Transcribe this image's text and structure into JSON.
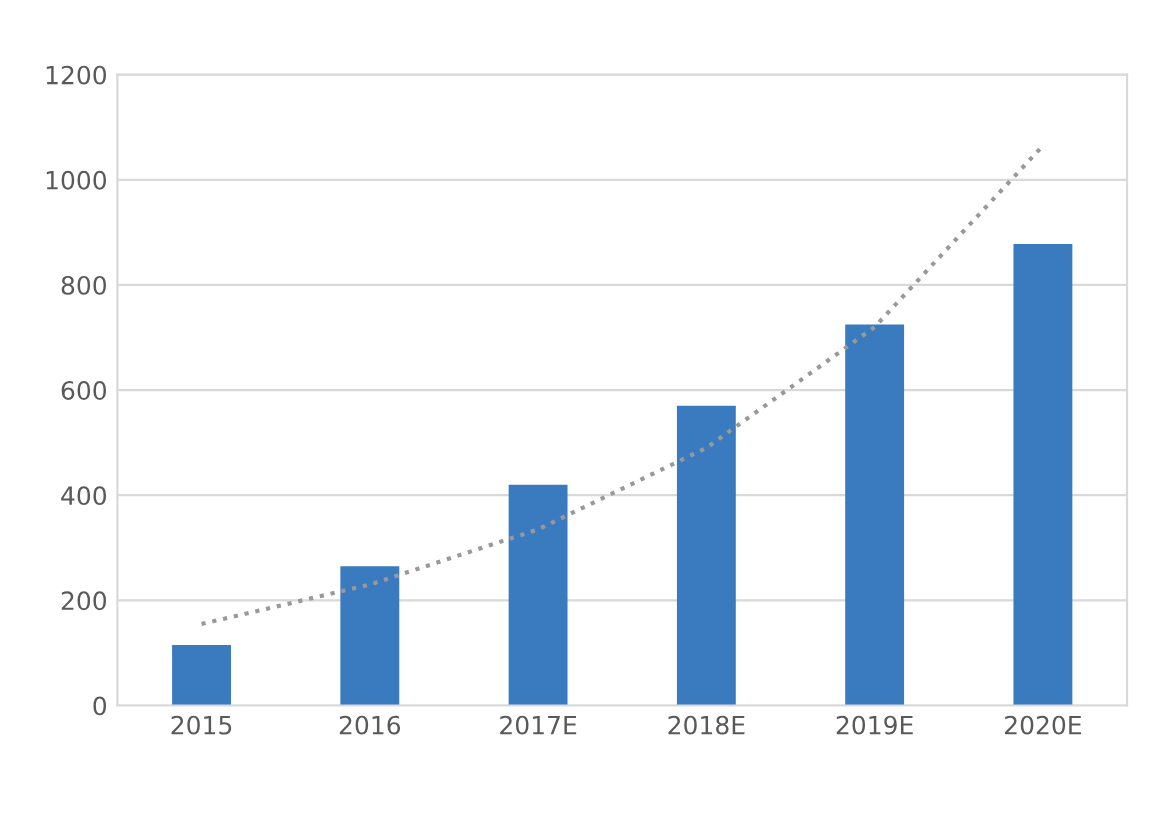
{
  "chart_data": {
    "type": "bar",
    "categories": [
      "2015",
      "2016",
      "2017E",
      "2018E",
      "2019E",
      "2020E"
    ],
    "series": [
      {
        "color": "#3a7bbf",
        "values": [
          115,
          265,
          420,
          570,
          725,
          878
        ]
      },
      {
        "type": "line",
        "color": "#999999",
        "line_style": "dotted",
        "values": [
          155,
          230,
          335,
          490,
          720,
          1065
        ]
      }
    ],
    "ylim": [
      0,
      1200
    ],
    "yticks": [
      0,
      200,
      400,
      600,
      800,
      1000,
      1200
    ],
    "grid": "y",
    "legend": false
  }
}
